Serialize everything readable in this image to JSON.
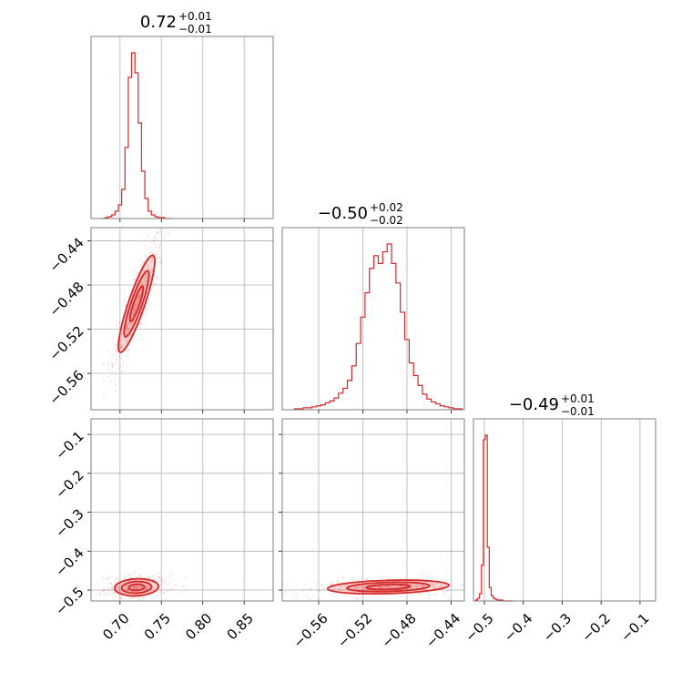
{
  "chart_data": {
    "type": "corner",
    "color": "#d62728",
    "parameters": [
      {
        "id": "p0",
        "summary": {
          "median": "0.72",
          "plus": "+0.01",
          "minus": "−0.01"
        },
        "range": [
          0.665,
          0.885
        ]
      },
      {
        "id": "p1",
        "summary": {
          "median": "−0.50",
          "plus": "+0.02",
          "minus": "−0.02"
        },
        "range": [
          -0.593,
          -0.428
        ]
      },
      {
        "id": "p2",
        "summary": {
          "median": "−0.49",
          "plus": "+0.01",
          "minus": "−0.01"
        },
        "range": [
          -0.528,
          -0.06
        ]
      }
    ],
    "ticks": {
      "p0": {
        "values": [
          0.7,
          0.75,
          0.8,
          0.85
        ],
        "labels": [
          "0.70",
          "0.75",
          "0.80",
          "0.85"
        ]
      },
      "p1": {
        "values": [
          -0.56,
          -0.52,
          -0.48,
          -0.44
        ],
        "labels": [
          "−0.56",
          "−0.52",
          "−0.48",
          "−0.44"
        ]
      },
      "p2": {
        "values": [
          -0.5,
          -0.4,
          -0.3,
          -0.2,
          -0.1
        ],
        "labels": [
          "−0.5",
          "−0.4",
          "−0.3",
          "−0.2",
          "−0.1"
        ]
      }
    },
    "histograms": {
      "p0": {
        "x": [
          0.68,
          0.684,
          0.688,
          0.692,
          0.696,
          0.7,
          0.704,
          0.708,
          0.712,
          0.716,
          0.72,
          0.724,
          0.728,
          0.732,
          0.736,
          0.74,
          0.744,
          0.748,
          0.752,
          0.756,
          0.76
        ],
        "counts": [
          0,
          1,
          2,
          4,
          8,
          15,
          32,
          78,
          155,
          182,
          160,
          105,
          52,
          22,
          8,
          4,
          2,
          1,
          1,
          0,
          0
        ]
      },
      "p1": {
        "x": [
          -0.58,
          -0.576,
          -0.572,
          -0.568,
          -0.564,
          -0.56,
          -0.556,
          -0.552,
          -0.548,
          -0.544,
          -0.54,
          -0.536,
          -0.532,
          -0.528,
          -0.524,
          -0.52,
          -0.516,
          -0.512,
          -0.508,
          -0.504,
          -0.5,
          -0.496,
          -0.492,
          -0.488,
          -0.484,
          -0.48,
          -0.476,
          -0.472,
          -0.468,
          -0.464,
          -0.46,
          -0.456,
          -0.452,
          -0.448,
          -0.444,
          -0.44,
          -0.436,
          -0.432
        ],
        "counts": [
          1,
          1,
          2,
          2,
          3,
          4,
          5,
          7,
          9,
          12,
          17,
          22,
          30,
          45,
          68,
          95,
          120,
          145,
          158,
          150,
          162,
          170,
          150,
          130,
          100,
          72,
          48,
          35,
          25,
          16,
          11,
          8,
          6,
          4,
          3,
          2,
          1,
          1
        ]
      },
      "p2": {
        "x": [
          -0.52,
          -0.515,
          -0.51,
          -0.505,
          -0.5,
          -0.495,
          -0.49,
          -0.485,
          -0.48,
          -0.475,
          -0.47,
          -0.465,
          -0.46,
          -0.455,
          -0.45,
          -0.445,
          -0.44,
          -0.435,
          -0.43
        ],
        "counts": [
          1,
          3,
          8,
          40,
          180,
          185,
          60,
          15,
          6,
          3,
          2,
          1,
          1,
          1,
          0,
          0,
          0,
          0,
          0
        ]
      }
    },
    "joint": [
      {
        "x": "p0",
        "y": "p1",
        "center": [
          0.72,
          -0.497
        ],
        "sigma": [
          0.01,
          0.02
        ],
        "rho": 0.88,
        "n": 380
      },
      {
        "x": "p0",
        "y": "p2",
        "center": [
          0.72,
          -0.493
        ],
        "sigma": [
          0.012,
          0.01
        ],
        "rho": 0.1,
        "n": 300
      },
      {
        "x": "p1",
        "y": "p2",
        "center": [
          -0.497,
          -0.492
        ],
        "sigma": [
          0.025,
          0.008
        ],
        "rho": 0.25,
        "n": 300
      }
    ],
    "grid": true
  }
}
